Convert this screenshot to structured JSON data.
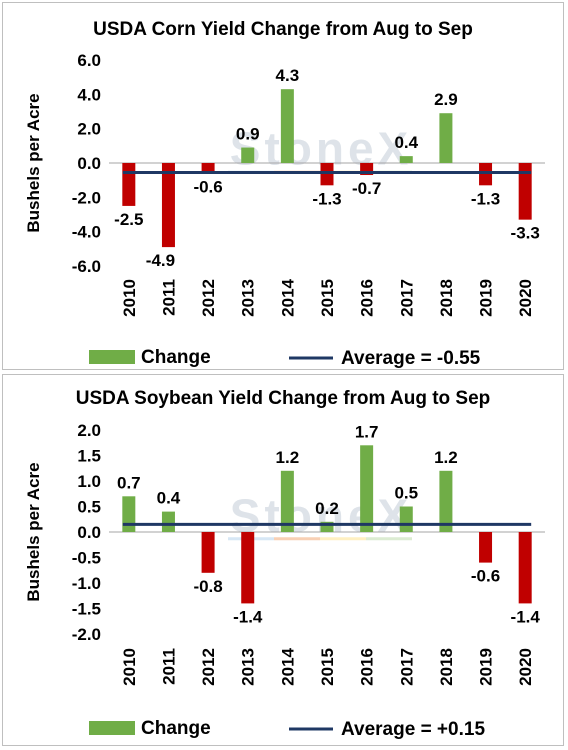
{
  "chart_data": [
    {
      "type": "bar",
      "title": "USDA Corn Yield Change from Aug to Sep",
      "ylabel": "Bushels per Acre",
      "categories": [
        "2010",
        "2011",
        "2012",
        "2013",
        "2014",
        "2015",
        "2016",
        "2017",
        "2018",
        "2019",
        "2020"
      ],
      "series": [
        {
          "name": "Change",
          "values": [
            -2.5,
            -4.9,
            -0.6,
            0.9,
            4.3,
            -1.3,
            -0.7,
            0.4,
            2.9,
            -1.3,
            -3.3
          ]
        }
      ],
      "data_labels": [
        "-2.5",
        "-4.9",
        "-0.6",
        "0.9",
        "4.3",
        "-1.3",
        "-0.7",
        "0.4",
        "2.9",
        "-1.3",
        "-3.3"
      ],
      "average": {
        "name": "Average = -0.55",
        "value": -0.55
      },
      "ylim": [
        -6,
        6
      ],
      "yticks": [
        6,
        4,
        2,
        0,
        -2,
        -4,
        -6
      ],
      "ytick_labels": [
        "6.0",
        "4.0",
        "2.0",
        "0.0",
        "-2.0",
        "-4.0",
        "-6.0"
      ],
      "legend_position": "bottom",
      "grid": false,
      "watermark": "StoneX",
      "colors": {
        "positive": "#70ad47",
        "negative": "#c00000",
        "average": "#1f3864"
      }
    },
    {
      "type": "bar",
      "title": "USDA Soybean Yield Change from Aug to Sep",
      "ylabel": "Bushels per Acre",
      "categories": [
        "2010",
        "2011",
        "2012",
        "2013",
        "2014",
        "2015",
        "2016",
        "2017",
        "2018",
        "2019",
        "2020"
      ],
      "series": [
        {
          "name": "Change",
          "values": [
            0.7,
            0.4,
            -0.8,
            -1.4,
            1.2,
            0.2,
            1.7,
            0.5,
            1.2,
            -0.6,
            -1.4
          ]
        }
      ],
      "data_labels": [
        "0.7",
        "0.4",
        "-0.8",
        "-1.4",
        "1.2",
        "0.2",
        "1.7",
        "0.5",
        "1.2",
        "-0.6",
        "-1.4"
      ],
      "average": {
        "name": "Average = +0.15",
        "value": 0.15
      },
      "ylim": [
        -2,
        2
      ],
      "yticks": [
        2,
        1.5,
        1,
        0.5,
        0,
        -0.5,
        -1,
        -1.5,
        -2
      ],
      "ytick_labels": [
        "2.0",
        "1.5",
        "1.0",
        "0.5",
        "0.0",
        "-0.5",
        "-1.0",
        "-1.5",
        "-2.0"
      ],
      "legend_position": "bottom",
      "grid": false,
      "watermark": "StoneX",
      "colors": {
        "positive": "#70ad47",
        "negative": "#c00000",
        "average": "#1f3864"
      }
    }
  ]
}
